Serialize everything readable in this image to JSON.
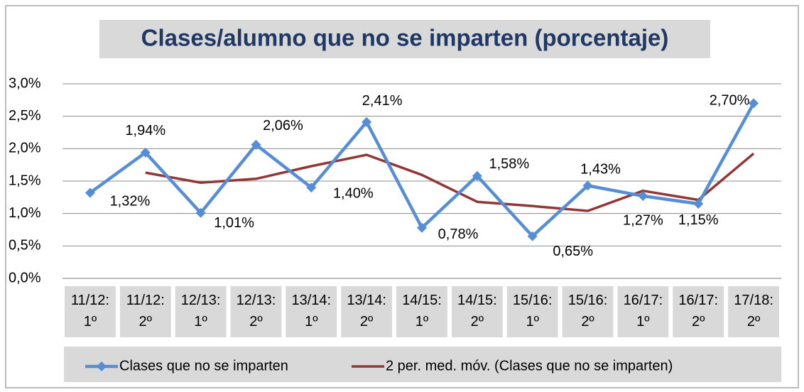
{
  "chart_data": {
    "type": "line",
    "title": "Clases/alumno que no se imparten (porcentaje)",
    "categories": [
      "11/12: 1º",
      "11/12: 2º",
      "12/13: 1º",
      "12/13: 2º",
      "13/14: 1º",
      "13/14: 2º",
      "14/15: 1º",
      "14/15: 2º",
      "15/16: 1º",
      "15/16: 2º",
      "16/17: 1º",
      "16/17: 2º",
      "17/18: 2º"
    ],
    "series": [
      {
        "name": "Clases que no se imparten",
        "color": "#558ed5",
        "marker": "diamond",
        "values": [
          1.32,
          1.94,
          1.01,
          2.06,
          1.4,
          2.41,
          0.78,
          1.58,
          0.65,
          1.43,
          1.27,
          1.15,
          2.7
        ],
        "value_labels": [
          "1,32%",
          "1,94%",
          "1,01%",
          "2,06%",
          "1,40%",
          "2,41%",
          "0,78%",
          "1,58%",
          "0,65%",
          "1,43%",
          "1,27%",
          "1,15%",
          "2,70%"
        ]
      },
      {
        "name": "2 per. med. móv. (Clases que no se imparten)",
        "color": "#943634",
        "values": [
          null,
          1.63,
          1.475,
          1.535,
          1.73,
          1.905,
          1.595,
          1.18,
          1.115,
          1.04,
          1.35,
          1.21,
          1.925
        ]
      }
    ],
    "ylim": [
      0,
      3
    ],
    "yticks": [
      {
        "value": 0,
        "label": "0,0%"
      },
      {
        "value": 0.5,
        "label": "0,5%"
      },
      {
        "value": 1,
        "label": "1,0%"
      },
      {
        "value": 1.5,
        "label": "1,5%"
      },
      {
        "value": 2,
        "label": "2,0%"
      },
      {
        "value": 2.5,
        "label": "2,5%"
      },
      {
        "value": 3,
        "label": "3,0%"
      }
    ],
    "grid": true,
    "legend": "bottom"
  }
}
